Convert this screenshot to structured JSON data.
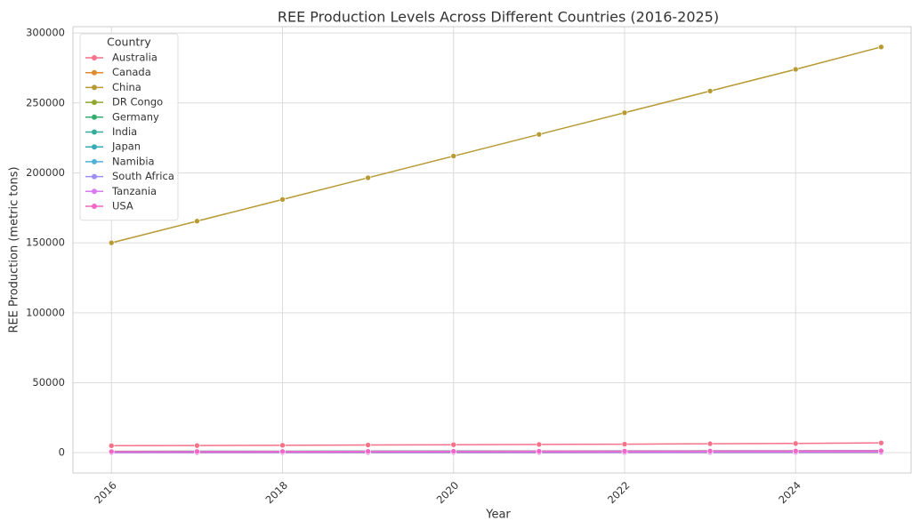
{
  "chart_data": {
    "type": "line",
    "title": "REE Production Levels Across Different Countries (2016-2025)",
    "x_label": "Year",
    "y_label": "REE Production (metric tons)",
    "legend_title": "Country",
    "legend_position": "upper left",
    "grid": true,
    "x": [
      2016,
      2017,
      2018,
      2019,
      2020,
      2021,
      2022,
      2023,
      2024,
      2025
    ],
    "xlim": [
      2015.55,
      2025.35
    ],
    "xticks": [
      2016,
      2018,
      2020,
      2022,
      2024
    ],
    "ylim": [
      -14500,
      304500
    ],
    "yticks": [
      0,
      50000,
      100000,
      150000,
      200000,
      250000,
      300000
    ],
    "series": [
      {
        "name": "Australia",
        "color": "#f77189",
        "values": [
          5000,
          5100,
          5300,
          5500,
          5700,
          5900,
          6100,
          6400,
          6600,
          7000
        ]
      },
      {
        "name": "Canada",
        "color": "#de8a31",
        "values": [
          200,
          220,
          240,
          260,
          280,
          300,
          320,
          340,
          360,
          400
        ]
      },
      {
        "name": "China",
        "color": "#b69a32",
        "values": [
          150000,
          165500,
          181000,
          196500,
          212000,
          227500,
          243000,
          258500,
          274000,
          290000
        ]
      },
      {
        "name": "DR Congo",
        "color": "#8fa831",
        "values": [
          100,
          110,
          120,
          130,
          140,
          150,
          160,
          170,
          180,
          200
        ]
      },
      {
        "name": "Germany",
        "color": "#36ad6f",
        "values": [
          50,
          55,
          60,
          65,
          70,
          75,
          80,
          85,
          90,
          100
        ]
      },
      {
        "name": "India",
        "color": "#36ad9b",
        "values": [
          1000,
          1050,
          1100,
          1150,
          1200,
          1250,
          1300,
          1350,
          1400,
          1500
        ]
      },
      {
        "name": "Japan",
        "color": "#37abb4",
        "values": [
          300,
          310,
          320,
          330,
          340,
          350,
          360,
          370,
          380,
          400
        ]
      },
      {
        "name": "Namibia",
        "color": "#50b1d8",
        "values": [
          150,
          160,
          170,
          180,
          190,
          200,
          210,
          220,
          230,
          250
        ]
      },
      {
        "name": "South Africa",
        "color": "#9f8ff1",
        "values": [
          500,
          600,
          700,
          800,
          900,
          1000,
          1100,
          1200,
          1300,
          1500
        ]
      },
      {
        "name": "Tanzania",
        "color": "#d97af0",
        "values": [
          100,
          120,
          140,
          160,
          180,
          200,
          220,
          240,
          260,
          300
        ]
      },
      {
        "name": "USA",
        "color": "#f067c5",
        "values": [
          800,
          850,
          900,
          950,
          1000,
          1050,
          1100,
          1150,
          1200,
          1300
        ]
      }
    ]
  }
}
